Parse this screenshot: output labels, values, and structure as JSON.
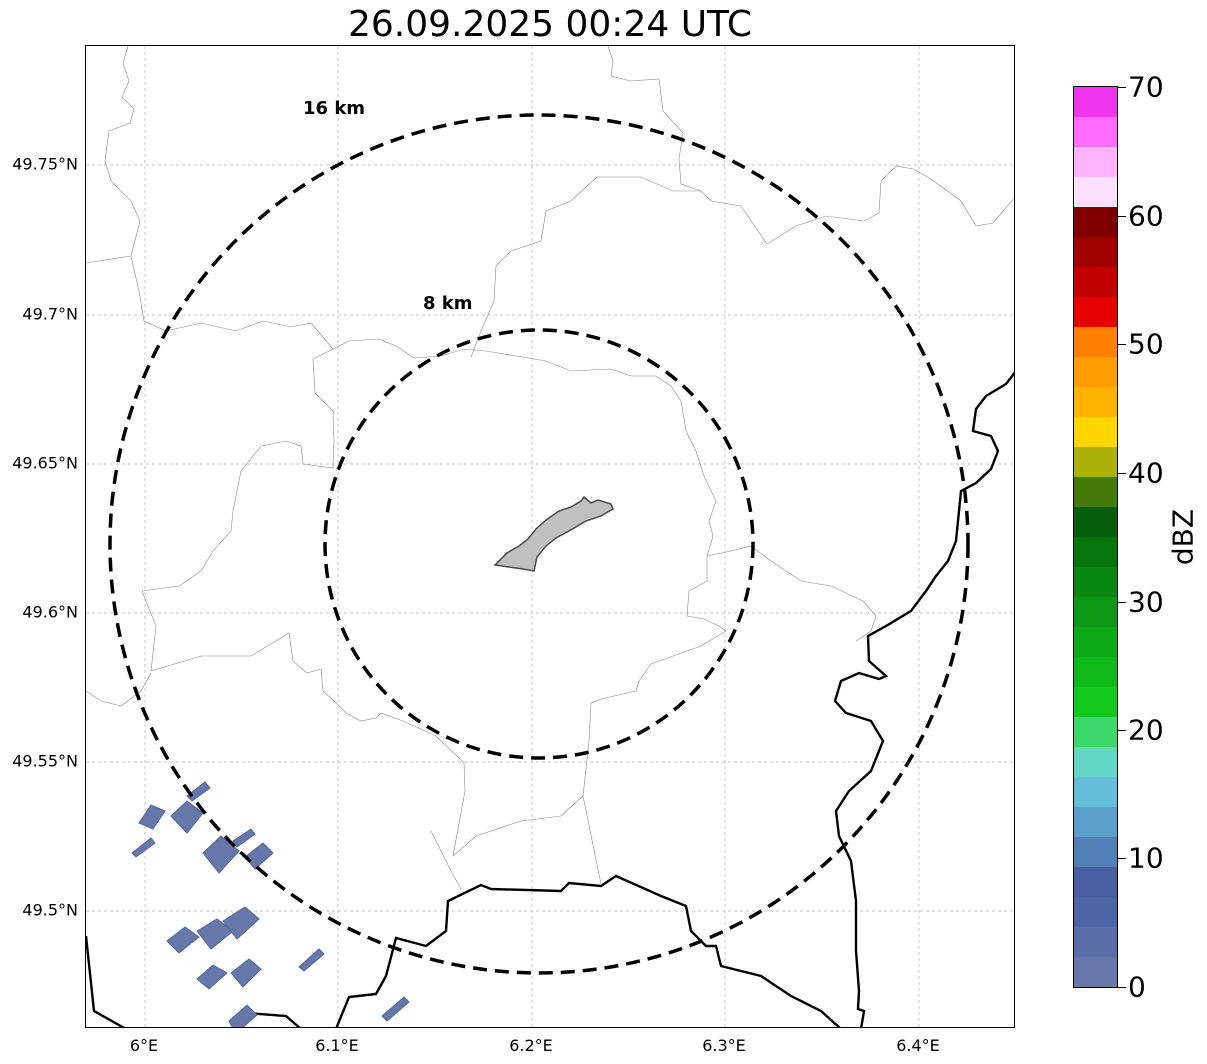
{
  "title": "26.09.2025 00:24 UTC",
  "map": {
    "lat_ticks": [
      "49.75°N",
      "49.7°N",
      "49.65°N",
      "49.6°N",
      "49.55°N",
      "49.5°N"
    ],
    "lon_ticks": [
      "6°E",
      "6.1°E",
      "6.2°E",
      "6.3°E",
      "6.4°E"
    ],
    "range_rings": [
      "16 km",
      "8 km"
    ],
    "gridlines": true,
    "ring_color": "#000000",
    "grid_color": "#b0b0b0",
    "site_fill": "#c0c0c0"
  },
  "colorbar": {
    "label": "dBZ",
    "ticks": [
      "0",
      "10",
      "20",
      "30",
      "40",
      "50",
      "60",
      "70"
    ],
    "colors": [
      "#6677a9",
      "#5a6ea7",
      "#4e65a5",
      "#4a5fa2",
      "#5080b6",
      "#5a9fca",
      "#64c0da",
      "#64d6c6",
      "#3dd86b",
      "#14c91d",
      "#10b91a",
      "#0ea917",
      "#0c9814",
      "#0a8710",
      "#08760e",
      "#065f0c",
      "#457a08",
      "#aab10a",
      "#ffd600",
      "#ffb300",
      "#ff9d00",
      "#ff7f00",
      "#e60000",
      "#c20000",
      "#a00000",
      "#800000",
      "#ffe0ff",
      "#ffb3ff",
      "#ff6bff",
      "#f034f0"
    ]
  }
}
